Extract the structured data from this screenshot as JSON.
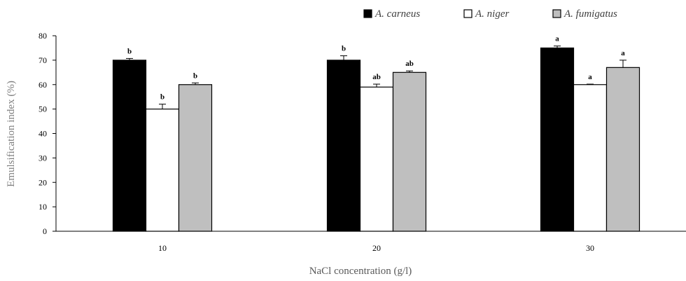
{
  "chart_data": {
    "type": "bar",
    "xlabel": "NaCl concentration (g/l)",
    "ylabel": "Emulsification index (%)",
    "ylim": [
      0,
      80
    ],
    "yticks": [
      0,
      10,
      20,
      30,
      40,
      50,
      60,
      70,
      80
    ],
    "categories": [
      "10",
      "20",
      "30"
    ],
    "series": [
      {
        "name": "A. carneus",
        "color": "#000000",
        "values": [
          70,
          70,
          75
        ],
        "errors": [
          0.7,
          1.8,
          0.8
        ],
        "labels": [
          "b",
          "b",
          "a"
        ]
      },
      {
        "name": "A. niger",
        "color": "#ffffff",
        "values": [
          50,
          59,
          60
        ],
        "errors": [
          2.0,
          1.2,
          0.2
        ],
        "labels": [
          "b",
          "ab",
          "a"
        ]
      },
      {
        "name": "A. fumigatus",
        "color": "#bfbfbf",
        "values": [
          60,
          65,
          67
        ],
        "errors": [
          0.7,
          0.6,
          3.0
        ],
        "labels": [
          "b",
          "ab",
          "a"
        ]
      }
    ],
    "legend_position": "top-right",
    "grid": false
  }
}
